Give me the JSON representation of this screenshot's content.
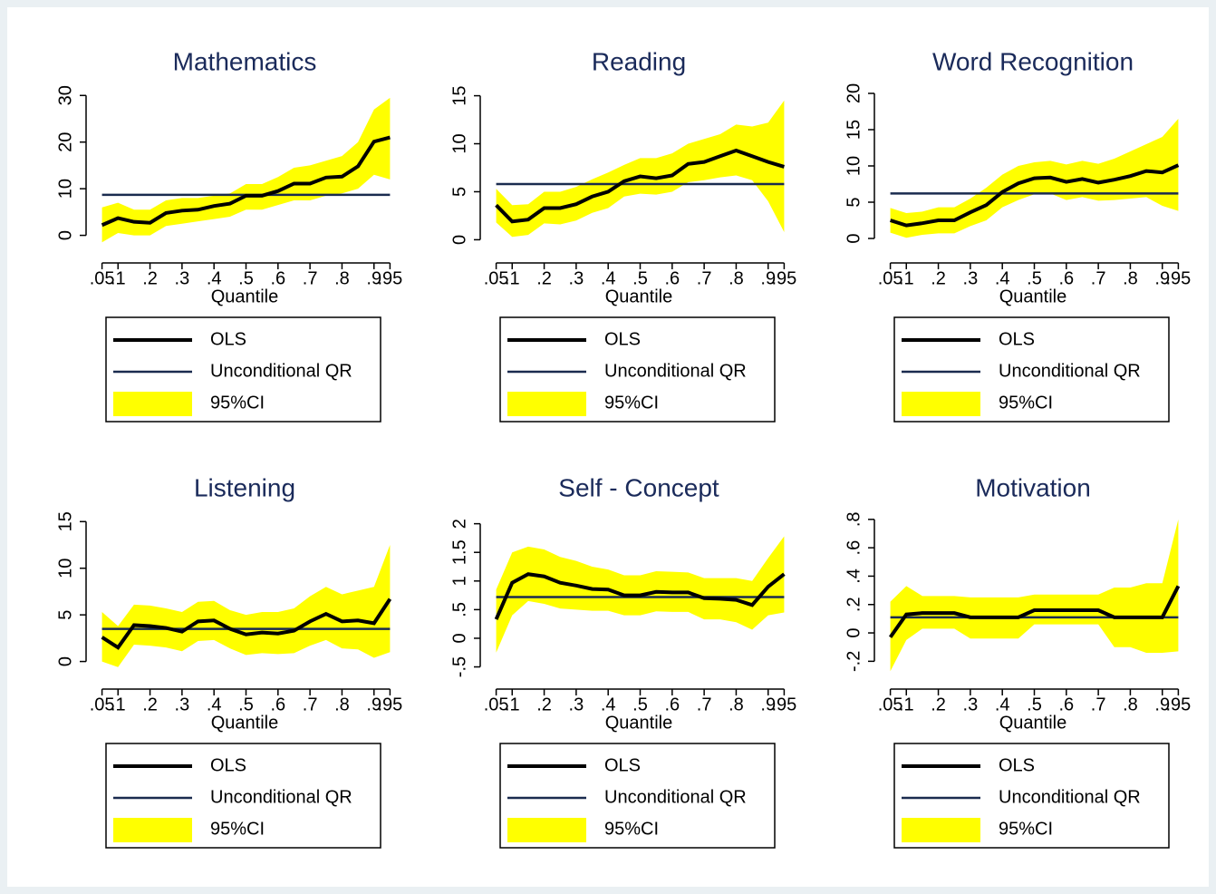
{
  "chart_data": [
    {
      "type": "line",
      "title": "Mathematics",
      "xlabel": "Quantile",
      "x": [
        0.05,
        0.1,
        0.15,
        0.2,
        0.25,
        0.3,
        0.35,
        0.4,
        0.45,
        0.5,
        0.55,
        0.6,
        0.65,
        0.7,
        0.75,
        0.8,
        0.85,
        0.9,
        0.95
      ],
      "xlim": [
        0.02,
        0.98
      ],
      "xticks": [
        {
          "value": 0.05,
          "label": ".05"
        },
        {
          "value": 0.1,
          "label": ".1"
        },
        {
          "value": 0.2,
          "label": ".2"
        },
        {
          "value": 0.3,
          "label": ".3"
        },
        {
          "value": 0.4,
          "label": ".4"
        },
        {
          "value": 0.5,
          "label": ".5"
        },
        {
          "value": 0.6,
          "label": ".6"
        },
        {
          "value": 0.7,
          "label": ".7"
        },
        {
          "value": 0.8,
          "label": ".8"
        },
        {
          "value": 0.9,
          "label": ".9"
        },
        {
          "value": 0.95,
          "label": ".95"
        }
      ],
      "ylim": [
        -3,
        32
      ],
      "yticks": [
        0,
        10,
        20,
        30
      ],
      "series": [
        {
          "name": "OLS",
          "color": "#000000",
          "values": [
            2.2,
            3.7,
            2.9,
            2.7,
            4.8,
            5.3,
            5.5,
            6.3,
            6.8,
            8.5,
            8.5,
            9.5,
            11.1,
            11.1,
            12.4,
            12.6,
            14.8,
            20.1,
            21
          ]
        },
        {
          "name": "Unconditional QR",
          "color": "#1a2b4f",
          "value": 8.7
        },
        {
          "name": "95%CI",
          "color": "#ffff00",
          "lower": [
            -1.5,
            0.5,
            0,
            0,
            2,
            2.5,
            3,
            3.5,
            4,
            5.5,
            5.5,
            6.5,
            7.5,
            7.5,
            8.5,
            9,
            10,
            13,
            12
          ],
          "upper": [
            6,
            7,
            5.5,
            5.5,
            7.5,
            8,
            8,
            8.5,
            9,
            11,
            11,
            12.5,
            14.5,
            15,
            16,
            17,
            20,
            27,
            29.5
          ]
        }
      ]
    },
    {
      "type": "line",
      "title": "Reading",
      "xlabel": "Quantile",
      "x": [
        0.05,
        0.1,
        0.15,
        0.2,
        0.25,
        0.3,
        0.35,
        0.4,
        0.45,
        0.5,
        0.55,
        0.6,
        0.65,
        0.7,
        0.75,
        0.8,
        0.85,
        0.9,
        0.95
      ],
      "xlim": [
        0.02,
        0.98
      ],
      "xticks": [
        {
          "value": 0.05,
          "label": ".05"
        },
        {
          "value": 0.1,
          "label": ".1"
        },
        {
          "value": 0.2,
          "label": ".2"
        },
        {
          "value": 0.3,
          "label": ".3"
        },
        {
          "value": 0.4,
          "label": ".4"
        },
        {
          "value": 0.5,
          "label": ".5"
        },
        {
          "value": 0.6,
          "label": ".6"
        },
        {
          "value": 0.7,
          "label": ".7"
        },
        {
          "value": 0.8,
          "label": ".8"
        },
        {
          "value": 0.9,
          "label": ".9"
        },
        {
          "value": 0.95,
          "label": ".95"
        }
      ],
      "ylim": [
        -1,
        16
      ],
      "yticks": [
        0,
        5,
        10,
        15
      ],
      "series": [
        {
          "name": "OLS",
          "color": "#000000",
          "values": [
            3.6,
            1.9,
            2.1,
            3.3,
            3.3,
            3.7,
            4.5,
            5.0,
            6.1,
            6.6,
            6.4,
            6.7,
            7.9,
            8.1,
            8.7,
            9.3,
            8.7,
            8.1,
            7.6
          ]
        },
        {
          "name": "Unconditional QR",
          "color": "#1a2b4f",
          "value": 5.8
        },
        {
          "name": "95%CI",
          "color": "#ffff00",
          "lower": [
            1.8,
            0.3,
            0.5,
            1.7,
            1.6,
            2,
            2.8,
            3.3,
            4.5,
            4.8,
            4.7,
            5,
            6,
            6.2,
            6.5,
            6.7,
            6.2,
            4,
            0.8
          ],
          "upper": [
            5.3,
            3.6,
            3.7,
            5,
            5,
            5.5,
            6.3,
            7,
            7.8,
            8.5,
            8.5,
            9,
            10,
            10.5,
            11,
            12,
            11.8,
            12.2,
            14.5
          ]
        }
      ]
    },
    {
      "type": "line",
      "title": "Word Recognition",
      "xlabel": "Quantile",
      "x": [
        0.05,
        0.1,
        0.15,
        0.2,
        0.25,
        0.3,
        0.35,
        0.4,
        0.45,
        0.5,
        0.55,
        0.6,
        0.65,
        0.7,
        0.75,
        0.8,
        0.85,
        0.9,
        0.95
      ],
      "xlim": [
        0.02,
        0.98
      ],
      "xticks": [
        {
          "value": 0.05,
          "label": ".05"
        },
        {
          "value": 0.1,
          "label": ".1"
        },
        {
          "value": 0.2,
          "label": ".2"
        },
        {
          "value": 0.3,
          "label": ".3"
        },
        {
          "value": 0.4,
          "label": ".4"
        },
        {
          "value": 0.5,
          "label": ".5"
        },
        {
          "value": 0.6,
          "label": ".6"
        },
        {
          "value": 0.7,
          "label": ".7"
        },
        {
          "value": 0.8,
          "label": ".8"
        },
        {
          "value": 0.9,
          "label": ".9"
        },
        {
          "value": 0.95,
          "label": ".95"
        }
      ],
      "ylim": [
        -1.5,
        21
      ],
      "yticks": [
        0,
        5,
        10,
        15,
        20
      ],
      "series": [
        {
          "name": "OLS",
          "color": "#000000",
          "values": [
            2.5,
            1.8,
            2.1,
            2.5,
            2.5,
            3.6,
            4.6,
            6.4,
            7.6,
            8.3,
            8.4,
            7.8,
            8.2,
            7.7,
            8.1,
            8.6,
            9.3,
            9.1,
            10.1
          ]
        },
        {
          "name": "Unconditional QR",
          "color": "#1a2b4f",
          "value": 6.2
        },
        {
          "name": "95%CI",
          "color": "#ffff00",
          "lower": [
            0.8,
            0.1,
            0.5,
            0.7,
            0.7,
            1.7,
            2.5,
            4.3,
            5.3,
            6.1,
            6.2,
            5.3,
            5.7,
            5.2,
            5.3,
            5.5,
            5.7,
            4.5,
            3.8
          ],
          "upper": [
            4.2,
            3.5,
            3.7,
            4.3,
            4.3,
            5.5,
            7,
            8.8,
            10,
            10.5,
            10.7,
            10.2,
            10.7,
            10.3,
            11,
            12,
            13,
            14,
            16.5
          ]
        }
      ]
    },
    {
      "type": "line",
      "title": "Listening",
      "xlabel": "Quantile",
      "x": [
        0.05,
        0.1,
        0.15,
        0.2,
        0.25,
        0.3,
        0.35,
        0.4,
        0.45,
        0.5,
        0.55,
        0.6,
        0.65,
        0.7,
        0.75,
        0.8,
        0.85,
        0.9,
        0.95
      ],
      "xlim": [
        0.02,
        0.98
      ],
      "xticks": [
        {
          "value": 0.05,
          "label": ".05"
        },
        {
          "value": 0.1,
          "label": ".1"
        },
        {
          "value": 0.2,
          "label": ".2"
        },
        {
          "value": 0.3,
          "label": ".3"
        },
        {
          "value": 0.4,
          "label": ".4"
        },
        {
          "value": 0.5,
          "label": ".5"
        },
        {
          "value": 0.6,
          "label": ".6"
        },
        {
          "value": 0.7,
          "label": ".7"
        },
        {
          "value": 0.8,
          "label": ".8"
        },
        {
          "value": 0.9,
          "label": ".9"
        },
        {
          "value": 0.95,
          "label": ".95"
        }
      ],
      "ylim": [
        -1.5,
        16
      ],
      "yticks": [
        0,
        5,
        10,
        15
      ],
      "series": [
        {
          "name": "OLS",
          "color": "#000000",
          "values": [
            2.6,
            1.5,
            3.9,
            3.8,
            3.6,
            3.2,
            4.3,
            4.4,
            3.5,
            2.9,
            3.1,
            3.0,
            3.3,
            4.3,
            5.1,
            4.3,
            4.4,
            4.1,
            6.7
          ]
        },
        {
          "name": "Unconditional QR",
          "color": "#1a2b4f",
          "value": 3.5
        },
        {
          "name": "95%CI",
          "color": "#ffff00",
          "lower": [
            0,
            -0.6,
            1.8,
            1.7,
            1.5,
            1.1,
            2.2,
            2.3,
            1.4,
            0.7,
            0.9,
            0.8,
            0.9,
            1.7,
            2.3,
            1.4,
            1.3,
            0.4,
            1.0
          ],
          "upper": [
            5.3,
            3.8,
            6.1,
            6,
            5.7,
            5.3,
            6.4,
            6.5,
            5.5,
            5,
            5.3,
            5.3,
            5.7,
            7,
            8,
            7.2,
            7.6,
            8,
            12.5
          ]
        }
      ]
    },
    {
      "type": "line",
      "title": "Self - Concept",
      "xlabel": "Quantile",
      "x": [
        0.05,
        0.1,
        0.15,
        0.2,
        0.25,
        0.3,
        0.35,
        0.4,
        0.45,
        0.5,
        0.55,
        0.6,
        0.65,
        0.7,
        0.75,
        0.8,
        0.85,
        0.9,
        0.95
      ],
      "xlim": [
        0.02,
        0.98
      ],
      "xticks": [
        {
          "value": 0.05,
          "label": ".05"
        },
        {
          "value": 0.1,
          "label": ".1"
        },
        {
          "value": 0.2,
          "label": ".2"
        },
        {
          "value": 0.3,
          "label": ".3"
        },
        {
          "value": 0.4,
          "label": ".4"
        },
        {
          "value": 0.5,
          "label": ".5"
        },
        {
          "value": 0.6,
          "label": ".6"
        },
        {
          "value": 0.7,
          "label": ".7"
        },
        {
          "value": 0.8,
          "label": ".8"
        },
        {
          "value": 0.9,
          "label": ".9"
        },
        {
          "value": 0.95,
          "label": ".95"
        }
      ],
      "ylim": [
        -0.65,
        2.2
      ],
      "yticks": [
        {
          "value": -0.5,
          "label": "-.5"
        },
        0,
        {
          "value": 0.5,
          "label": ".5"
        },
        1,
        1.5,
        2
      ],
      "series": [
        {
          "name": "OLS",
          "color": "#000000",
          "values": [
            0.33,
            0.97,
            1.12,
            1.08,
            0.97,
            0.92,
            0.86,
            0.85,
            0.75,
            0.75,
            0.81,
            0.8,
            0.8,
            0.7,
            0.69,
            0.67,
            0.58,
            0.9,
            1.12
          ]
        },
        {
          "name": "Unconditional QR",
          "color": "#1a2b4f",
          "value": 0.72
        },
        {
          "name": "95%CI",
          "color": "#ffff00",
          "lower": [
            -0.25,
            0.4,
            0.65,
            0.6,
            0.52,
            0.5,
            0.48,
            0.48,
            0.4,
            0.4,
            0.47,
            0.46,
            0.46,
            0.33,
            0.33,
            0.28,
            0.15,
            0.4,
            0.45
          ],
          "upper": [
            0.85,
            1.5,
            1.6,
            1.55,
            1.42,
            1.35,
            1.25,
            1.2,
            1.1,
            1.1,
            1.17,
            1.16,
            1.15,
            1.05,
            1.05,
            1.05,
            1.0,
            1.4,
            1.78
          ]
        }
      ]
    },
    {
      "type": "line",
      "title": "Motivation",
      "xlabel": "Quantile",
      "x": [
        0.05,
        0.1,
        0.15,
        0.2,
        0.25,
        0.3,
        0.35,
        0.4,
        0.45,
        0.5,
        0.55,
        0.6,
        0.65,
        0.7,
        0.75,
        0.8,
        0.85,
        0.9,
        0.95
      ],
      "xlim": [
        0.02,
        0.98
      ],
      "xticks": [
        {
          "value": 0.05,
          "label": ".05"
        },
        {
          "value": 0.1,
          "label": ".1"
        },
        {
          "value": 0.2,
          "label": ".2"
        },
        {
          "value": 0.3,
          "label": ".3"
        },
        {
          "value": 0.4,
          "label": ".4"
        },
        {
          "value": 0.5,
          "label": ".5"
        },
        {
          "value": 0.6,
          "label": ".6"
        },
        {
          "value": 0.7,
          "label": ".7"
        },
        {
          "value": 0.8,
          "label": ".8"
        },
        {
          "value": 0.9,
          "label": ".9"
        },
        {
          "value": 0.95,
          "label": ".95"
        }
      ],
      "ylim": [
        -0.3,
        0.85
      ],
      "yticks": [
        {
          "value": -0.2,
          "label": "-.2"
        },
        0,
        {
          "value": 0.2,
          "label": ".2"
        },
        {
          "value": 0.4,
          "label": ".4"
        },
        {
          "value": 0.6,
          "label": ".6"
        },
        {
          "value": 0.8,
          "label": ".8"
        }
      ],
      "series": [
        {
          "name": "OLS",
          "color": "#000000",
          "values": [
            -0.03,
            0.13,
            0.14,
            0.14,
            0.14,
            0.11,
            0.11,
            0.11,
            0.11,
            0.16,
            0.16,
            0.16,
            0.16,
            0.16,
            0.11,
            0.11,
            0.11,
            0.11,
            0.33
          ]
        },
        {
          "name": "Unconditional QR",
          "color": "#1a2b4f",
          "value": 0.11
        },
        {
          "name": "95%CI",
          "color": "#ffff00",
          "lower": [
            -0.27,
            -0.05,
            0.03,
            0.03,
            0.03,
            -0.04,
            -0.04,
            -0.04,
            -0.04,
            0.06,
            0.06,
            0.06,
            0.06,
            0.06,
            -0.1,
            -0.1,
            -0.14,
            -0.14,
            -0.13
          ],
          "upper": [
            0.22,
            0.33,
            0.26,
            0.26,
            0.26,
            0.25,
            0.25,
            0.25,
            0.25,
            0.27,
            0.27,
            0.27,
            0.27,
            0.27,
            0.32,
            0.32,
            0.35,
            0.35,
            0.8
          ]
        }
      ]
    }
  ]
}
